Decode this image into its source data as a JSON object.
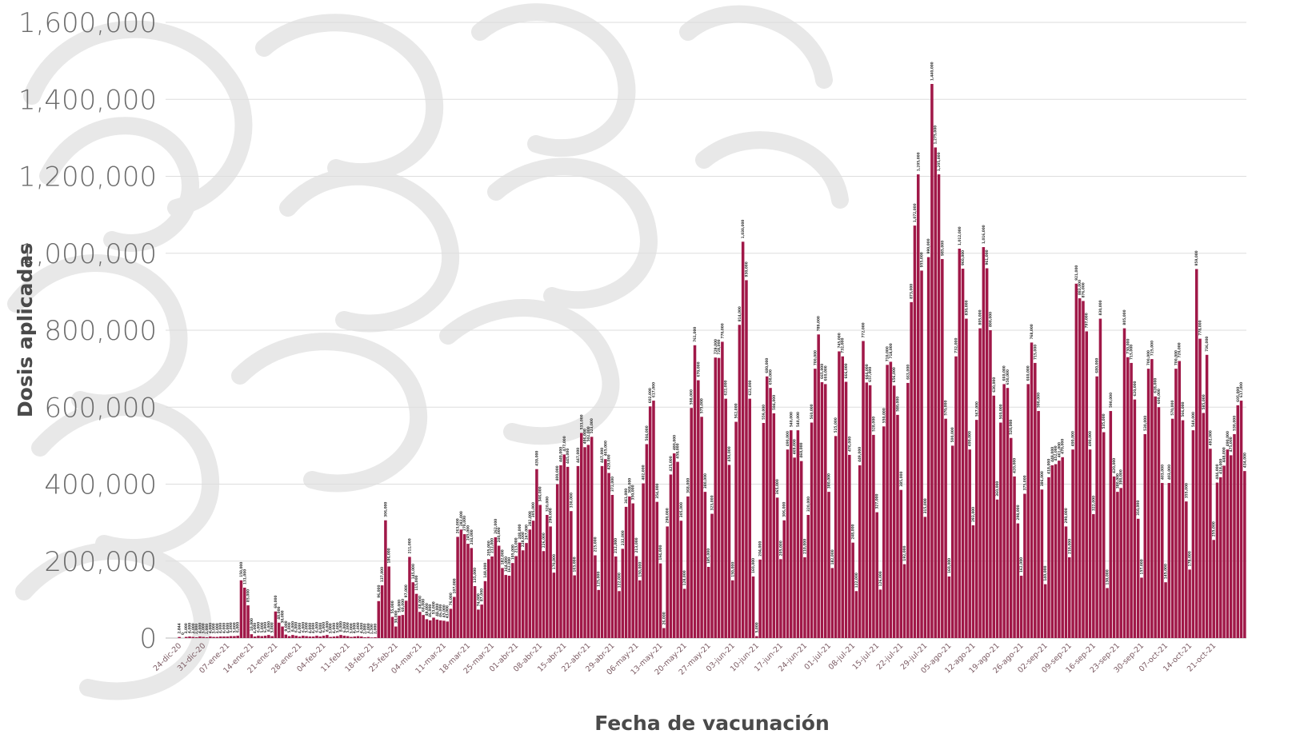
{
  "chart_data": {
    "type": "bar",
    "xlabel": "Fecha de vacunación",
    "ylabel": "Dosis aplicadas",
    "ylim": [
      0,
      1600000
    ],
    "y_ticks": [
      0,
      200000,
      400000,
      600000,
      800000,
      1000000,
      1200000,
      1400000,
      1600000
    ],
    "y_tick_labels": [
      "0",
      "200,000",
      "400,000",
      "600,000",
      "800,000",
      "1,000,000",
      "1,200,000",
      "1,400,000",
      "1,600,000"
    ],
    "grid": true,
    "legend": "none",
    "bar_color": "#a01848",
    "start_date": "2020-12-24",
    "x_tick_labels": [
      "24-dic-20",
      "31-dic-20",
      "07-ene-21",
      "14-ene-21",
      "21-ene-21",
      "28-ene-21",
      "04-feb-21",
      "11-feb-21",
      "18-feb-21",
      "25-feb-21",
      "04-mar-21",
      "11-mar-21",
      "18-mar-21",
      "25-mar-21",
      "01-abr-21",
      "08-abr-21",
      "15-abr-21",
      "22-abr-21",
      "29-abr-21",
      "06-may-21",
      "13-may-21",
      "20-may-21",
      "27-may-21",
      "03-jun-21",
      "10-jun-21",
      "17-jun-21",
      "24-jun-21",
      "01-jul-21",
      "08-jul-21",
      "15-jul-21",
      "22-jul-21",
      "29-jul-21",
      "05-ago-21",
      "12-ago-21",
      "19-ago-21",
      "26-ago-21",
      "02-sep-21",
      "09-sep-21",
      "16-sep-21",
      "23-sep-21",
      "30-sep-21",
      "07-oct-21",
      "14-oct-21",
      "21-oct-21"
    ],
    "values": [
      2844,
      0,
      3000,
      4000,
      3000,
      2000,
      4000,
      3000,
      2000,
      4000,
      3000,
      3000,
      4000,
      4000,
      4000,
      5000,
      5000,
      6000,
      150000,
      131000,
      85000,
      10000,
      4000,
      6000,
      5000,
      6000,
      8000,
      5000,
      69000,
      40000,
      30000,
      9000,
      5000,
      8000,
      6000,
      4000,
      6000,
      5000,
      4000,
      4000,
      6000,
      4000,
      6000,
      8000,
      3000,
      4000,
      5000,
      8000,
      6000,
      5000,
      3000,
      4000,
      5000,
      4000,
      2000,
      3000,
      1500,
      2000,
      96000,
      137000,
      306000,
      186000,
      55000,
      30000,
      58000,
      60000,
      97000,
      211000,
      145000,
      115000,
      68000,
      60000,
      49000,
      46000,
      53000,
      48000,
      46000,
      45000,
      43000,
      76000,
      107000,
      263000,
      282000,
      270000,
      245000,
      234000,
      135000,
      74000,
      87000,
      148000,
      205000,
      212000,
      262000,
      240000,
      182000,
      164000,
      162000,
      195000,
      213000,
      248000,
      228000,
      247000,
      282000,
      305000,
      439000,
      346000,
      226000,
      320000,
      290000,
      170000,
      400000,
      449000,
      477000,
      445000,
      330000,
      163000,
      447000,
      533000,
      496000,
      502000,
      523000,
      215000,
      125000,
      447000,
      465000,
      429000,
      372000,
      212000,
      122000,
      232000,
      341000,
      368000,
      350000,
      213000,
      150000,
      402000,
      504000,
      602000,
      617000,
      354000,
      194000,
      26000,
      290000,
      425000,
      480000,
      458000,
      305000,
      128000,
      368000,
      598000,
      761000,
      670000,
      575000,
      380000,
      185000,
      323000,
      729000,
      728000,
      770000,
      622000,
      450000,
      150000,
      562000,
      814000,
      1030000,
      930000,
      622000,
      160000,
      5000,
      204000,
      559000,
      680000,
      650000,
      584000,
      365000,
      205000,
      306000,
      490000,
      540000,
      469000,
      540000,
      460000,
      210000,
      320000,
      560000,
      700000,
      789000,
      665000,
      660000,
      380000,
      182000,
      525000,
      745000,
      732000,
      666000,
      476000,
      248000,
      122000,
      449000,
      772000,
      664000,
      657000,
      528000,
      327000,
      126000,
      550000,
      710000,
      718000,
      656000,
      580000,
      385000,
      192000,
      663000,
      873000,
      1072000,
      1205000,
      955000,
      315000,
      990000,
      1440000,
      1275000,
      1205000,
      985000,
      570000,
      160000,
      500000,
      732000,
      1012000,
      960000,
      830000,
      490000,
      293000,
      567000,
      805000,
      1016000,
      961000,
      800000,
      630000,
      360000,
      560000,
      660000,
      650000,
      520000,
      420000,
      298000,
      162000,
      375000,
      660000,
      768000,
      715000,
      590000,
      386000,
      140000,
      418000,
      449000,
      452000,
      461000,
      470000,
      290000,
      210000,
      490000,
      921000,
      883000,
      876000,
      797000,
      490000,
      322000,
      680000,
      830000,
      535000,
      130000,
      590000,
      420000,
      380000,
      390000,
      805000,
      730000,
      715000,
      620000,
      310000,
      157000,
      530000,
      700000,
      725000,
      628000,
      600000,
      403000,
      145000,
      403000,
      570000,
      700000,
      720000,
      566000,
      355000,
      178000,
      540000,
      959000,
      778000,
      585000,
      736000,
      492000,
      255000,
      404000,
      418000,
      448000,
      490000,
      475000,
      530000,
      605000,
      617000,
      434000
    ]
  }
}
